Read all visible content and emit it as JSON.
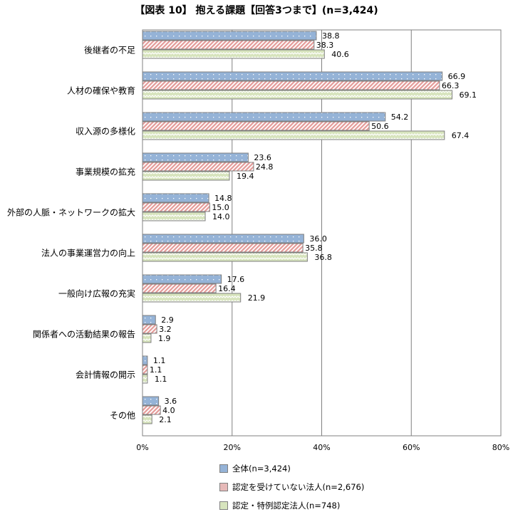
{
  "chart_data": {
    "type": "bar",
    "orientation": "horizontal",
    "title": "【図表 10】 抱える課題【回答3つまで】(n=3,424)",
    "categories": [
      "後継者の不足",
      "人材の確保や教育",
      "収入源の多様化",
      "事業規模の拡充",
      "外部の人脈・ネットワークの拡大",
      "法人の事業運営力の向上",
      "一般向け広報の充実",
      "関係者への活動結果の報告",
      "会計情報の開示",
      "その他"
    ],
    "series": [
      {
        "name": "全体(n=3,424)",
        "color": "#95b3d7",
        "values": [
          38.8,
          66.9,
          54.2,
          23.6,
          14.8,
          36.0,
          17.6,
          2.9,
          1.1,
          3.6
        ]
      },
      {
        "name": "認定を受けていない法人(n=2,676)",
        "color": "#e6b9b8",
        "values": [
          38.3,
          66.3,
          50.6,
          24.8,
          15.0,
          35.8,
          16.4,
          3.2,
          1.1,
          4.0
        ]
      },
      {
        "name": "認定・特例認定法人(n=748)",
        "color": "#d7e4bd",
        "values": [
          40.6,
          69.1,
          67.4,
          19.4,
          14.0,
          36.8,
          21.9,
          1.9,
          1.1,
          2.1
        ]
      }
    ],
    "xlim": [
      0,
      80
    ],
    "xticks": [
      "0%",
      "20%",
      "40%",
      "60%",
      "80%"
    ],
    "grid": true,
    "legend": "bottom"
  }
}
